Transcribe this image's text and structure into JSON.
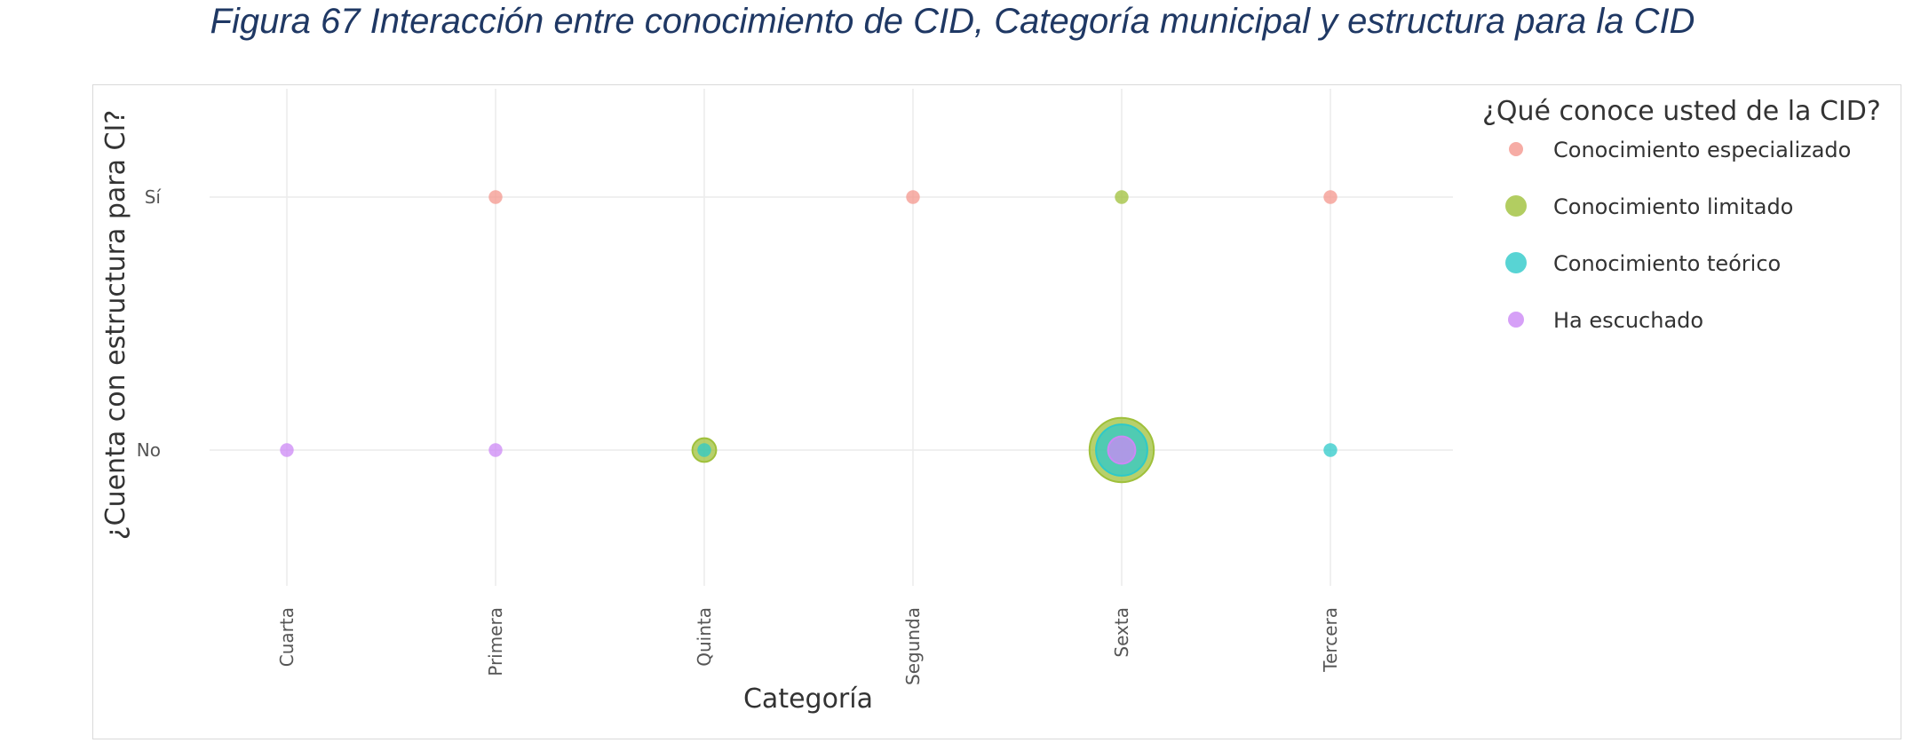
{
  "figure": {
    "caption": "Figura 67 Interacción entre conocimiento de CID, Categoría municipal y estructura para la CID"
  },
  "chart_data": {
    "type": "scatter",
    "xlabel": "Categoría",
    "ylabel": "¿Cuenta con estructura para CI?",
    "categories": [
      "Cuarta",
      "Primera",
      "Quinta",
      "Segunda",
      "Sexta",
      "Tercera"
    ],
    "y_categories": [
      "No",
      "Sí"
    ],
    "grid": true,
    "legend": {
      "title": "¿Qué conoce usted de la CID?",
      "placement": "top-right"
    },
    "series": [
      {
        "name": "Conocimiento especializado",
        "color": "#f4978e",
        "points": [
          {
            "x": "Primera",
            "y": "Sí",
            "size": 1
          },
          {
            "x": "Segunda",
            "y": "Sí",
            "size": 1
          },
          {
            "x": "Tercera",
            "y": "Sí",
            "size": 1
          }
        ]
      },
      {
        "name": "Conocimiento limitado",
        "color": "#9fc03a",
        "points": [
          {
            "x": "Sexta",
            "y": "Sí",
            "size": 1
          },
          {
            "x": "Quinta",
            "y": "No",
            "size": 3
          },
          {
            "x": "Sexta",
            "y": "No",
            "size": 22
          }
        ]
      },
      {
        "name": "Conocimiento teórico",
        "color": "#2ec9c9",
        "points": [
          {
            "x": "Quinta",
            "y": "No",
            "size": 1
          },
          {
            "x": "Sexta",
            "y": "No",
            "size": 14
          },
          {
            "x": "Tercera",
            "y": "No",
            "size": 1
          }
        ]
      },
      {
        "name": "Ha escuchado",
        "color": "#cc88f5",
        "points": [
          {
            "x": "Cuarta",
            "y": "No",
            "size": 1
          },
          {
            "x": "Primera",
            "y": "No",
            "size": 1
          },
          {
            "x": "Sexta",
            "y": "No",
            "size": 4
          }
        ]
      }
    ]
  }
}
